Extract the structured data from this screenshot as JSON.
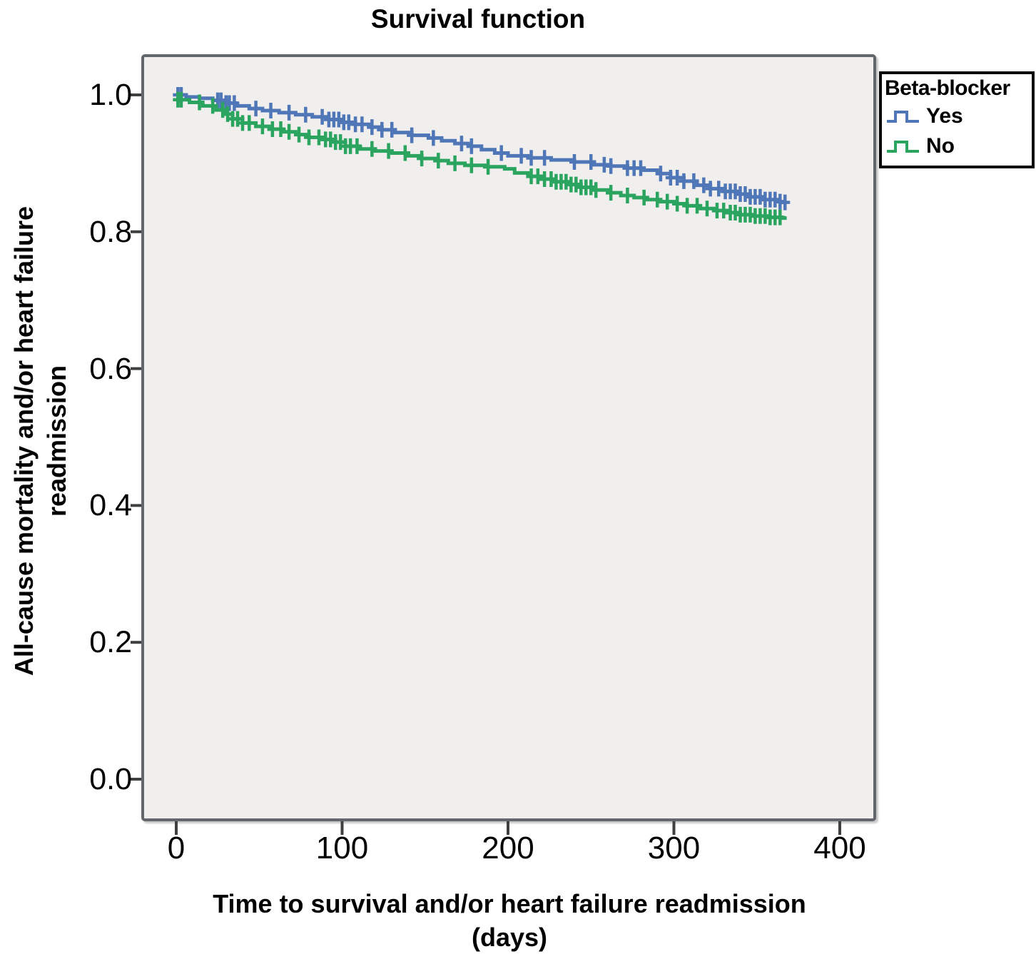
{
  "title": "Survival function",
  "y_axis": {
    "title_line1": "All-cause mortality and/or heart failure",
    "title_line2": "readmission"
  },
  "x_axis": {
    "title_line1": "Time to survival and/or heart failure readmission",
    "title_line2": "(days)"
  },
  "legend": {
    "title": "Beta-blocker",
    "items": [
      {
        "label": "Yes"
      },
      {
        "label": "No"
      }
    ]
  },
  "chart_data": {
    "type": "line",
    "subtype": "kaplan-meier-step-function",
    "title": "Survival function",
    "xlabel": "Time to survival and/or heart failure readmission (days)",
    "ylabel": "All-cause mortality and/or heart failure readmission",
    "xlim": [
      0,
      420
    ],
    "ylim": [
      0.0,
      1.05
    ],
    "x_ticks": [
      0,
      100,
      200,
      300,
      400
    ],
    "x_tick_labels": [
      "0",
      "100",
      "200",
      "300",
      "400"
    ],
    "y_ticks": [
      1.0,
      0.8,
      0.6,
      0.4,
      0.2,
      0.0
    ],
    "y_tick_labels": [
      "1.0",
      "0.8",
      "0.6",
      "0.4",
      "0.2",
      "0.0"
    ],
    "grid": false,
    "plot_background": "#f0efed",
    "legend_position": "top-right-outside",
    "legend_title": "Beta-blocker",
    "series": [
      {
        "name": "Yes",
        "color": "#4f77b8",
        "end_day": 368,
        "points": [
          [
            0,
            1.0
          ],
          [
            6,
            0.997
          ],
          [
            14,
            0.995
          ],
          [
            22,
            0.992
          ],
          [
            30,
            0.988
          ],
          [
            36,
            0.984
          ],
          [
            44,
            0.98
          ],
          [
            52,
            0.977
          ],
          [
            62,
            0.974
          ],
          [
            72,
            0.971
          ],
          [
            82,
            0.968
          ],
          [
            92,
            0.964
          ],
          [
            100,
            0.96
          ],
          [
            108,
            0.957
          ],
          [
            116,
            0.953
          ],
          [
            124,
            0.949
          ],
          [
            132,
            0.945
          ],
          [
            142,
            0.941
          ],
          [
            152,
            0.937
          ],
          [
            160,
            0.933
          ],
          [
            168,
            0.929
          ],
          [
            176,
            0.925
          ],
          [
            184,
            0.92
          ],
          [
            192,
            0.915
          ],
          [
            200,
            0.911
          ],
          [
            212,
            0.908
          ],
          [
            226,
            0.905
          ],
          [
            240,
            0.902
          ],
          [
            252,
            0.898
          ],
          [
            262,
            0.896
          ],
          [
            272,
            0.893
          ],
          [
            282,
            0.89
          ],
          [
            290,
            0.885
          ],
          [
            298,
            0.879
          ],
          [
            306,
            0.874
          ],
          [
            314,
            0.868
          ],
          [
            322,
            0.863
          ],
          [
            330,
            0.859
          ],
          [
            338,
            0.855
          ],
          [
            346,
            0.851
          ],
          [
            354,
            0.847
          ],
          [
            362,
            0.844
          ],
          [
            365,
            0.843
          ]
        ],
        "censor_days": [
          1,
          3,
          25,
          27,
          30,
          32,
          35,
          48,
          57,
          68,
          78,
          88,
          92,
          95,
          98,
          101,
          104,
          108,
          112,
          118,
          124,
          130,
          142,
          155,
          172,
          178,
          196,
          208,
          214,
          222,
          240,
          250,
          258,
          262,
          272,
          276,
          280,
          292,
          298,
          302,
          306,
          312,
          318,
          322,
          327,
          331,
          334,
          337,
          340,
          343,
          346,
          349,
          352,
          355,
          358,
          361,
          364,
          367
        ]
      },
      {
        "name": "No",
        "color": "#2aa45f",
        "end_day": 368,
        "points": [
          [
            0,
            0.993
          ],
          [
            8,
            0.989
          ],
          [
            16,
            0.984
          ],
          [
            24,
            0.978
          ],
          [
            30,
            0.972
          ],
          [
            34,
            0.965
          ],
          [
            40,
            0.959
          ],
          [
            48,
            0.954
          ],
          [
            56,
            0.95
          ],
          [
            64,
            0.946
          ],
          [
            72,
            0.942
          ],
          [
            80,
            0.938
          ],
          [
            88,
            0.935
          ],
          [
            96,
            0.931
          ],
          [
            102,
            0.925
          ],
          [
            110,
            0.921
          ],
          [
            120,
            0.918
          ],
          [
            130,
            0.915
          ],
          [
            140,
            0.911
          ],
          [
            148,
            0.907
          ],
          [
            156,
            0.904
          ],
          [
            164,
            0.9
          ],
          [
            174,
            0.897
          ],
          [
            186,
            0.895
          ],
          [
            198,
            0.892
          ],
          [
            204,
            0.886
          ],
          [
            212,
            0.881
          ],
          [
            220,
            0.877
          ],
          [
            228,
            0.873
          ],
          [
            236,
            0.869
          ],
          [
            244,
            0.865
          ],
          [
            252,
            0.861
          ],
          [
            260,
            0.857
          ],
          [
            268,
            0.853
          ],
          [
            276,
            0.85
          ],
          [
            284,
            0.847
          ],
          [
            292,
            0.844
          ],
          [
            300,
            0.841
          ],
          [
            308,
            0.838
          ],
          [
            316,
            0.834
          ],
          [
            324,
            0.831
          ],
          [
            332,
            0.828
          ],
          [
            340,
            0.825
          ],
          [
            348,
            0.823
          ],
          [
            356,
            0.821
          ],
          [
            365,
            0.82
          ]
        ],
        "censor_days": [
          1,
          3,
          14,
          22,
          28,
          31,
          34,
          37,
          40,
          44,
          52,
          58,
          63,
          68,
          74,
          80,
          86,
          90,
          93,
          96,
          99,
          102,
          105,
          109,
          118,
          128,
          138,
          148,
          158,
          168,
          178,
          188,
          214,
          218,
          222,
          226,
          229,
          232,
          235,
          238,
          241,
          244,
          247,
          250,
          253,
          262,
          272,
          282,
          290,
          296,
          302,
          308,
          314,
          320,
          326,
          330,
          334,
          337,
          340,
          343,
          346,
          349,
          352,
          355,
          358,
          361,
          364
        ]
      }
    ]
  }
}
